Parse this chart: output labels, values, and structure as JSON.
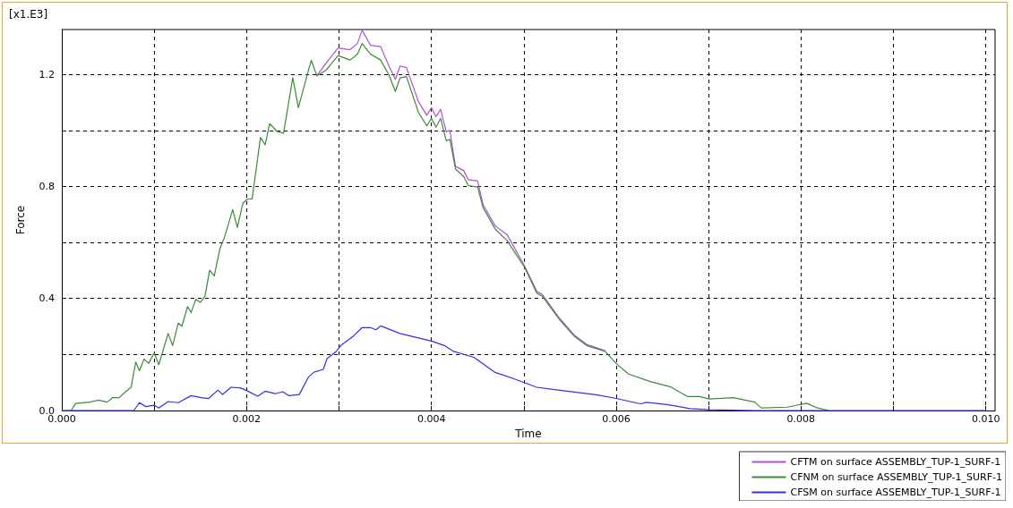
{
  "chart_data": {
    "type": "line",
    "xlabel": "Time",
    "ylabel": "Force",
    "annotations": [
      "[x1.E3]"
    ],
    "xlim": [
      0,
      0.0101
    ],
    "ylim": [
      0,
      1.36
    ],
    "xticks": [
      {
        "value": 0,
        "label": "0.000"
      },
      {
        "value": 0.001,
        "label": null
      },
      {
        "value": 0.002,
        "label": "0.002"
      },
      {
        "value": 0.003,
        "label": null
      },
      {
        "value": 0.004,
        "label": "0.004"
      },
      {
        "value": 0.005,
        "label": null
      },
      {
        "value": 0.006,
        "label": "0.006"
      },
      {
        "value": 0.007,
        "label": null
      },
      {
        "value": 0.008,
        "label": "0.008"
      },
      {
        "value": 0.009,
        "label": null
      },
      {
        "value": 0.01,
        "label": "0.010"
      }
    ],
    "yticks": [
      {
        "value": 0,
        "label": "0.0"
      },
      {
        "value": 0.2,
        "label": null
      },
      {
        "value": 0.4,
        "label": "0.4"
      },
      {
        "value": 0.6,
        "label": null
      },
      {
        "value": 0.8,
        "label": "0.8"
      },
      {
        "value": 1.0,
        "label": null
      },
      {
        "value": 1.2,
        "label": "1.2"
      }
    ],
    "grid": true,
    "legend": "bottom right",
    "marker": "none",
    "line_style": "solid",
    "series": [
      {
        "name": "CFTM on surface ASSEMBLY_TUP-1_SURF-1",
        "color": "#b050d8",
        "x": [
          0.00276,
          0.00286,
          0.00299,
          0.00312,
          0.0032,
          0.00325,
          0.00334,
          0.00345,
          0.00354,
          0.00361,
          0.00366,
          0.00373,
          0.00386,
          0.00395,
          0.004,
          0.00405,
          0.0041,
          0.00416,
          0.0042,
          0.00426,
          0.00435,
          0.0044,
          0.0045,
          0.00456,
          0.00469,
          0.00482,
          0.00501,
          0.00514,
          0.0052,
          0.00539,
          0.00555,
          0.00568,
          0.00588
        ],
        "values": [
          1.195,
          1.24,
          1.294,
          1.288,
          1.31,
          1.358,
          1.304,
          1.299,
          1.23,
          1.182,
          1.23,
          1.224,
          1.102,
          1.054,
          1.081,
          1.049,
          1.075,
          0.995,
          1.0,
          0.872,
          0.856,
          0.824,
          0.819,
          0.734,
          0.659,
          0.627,
          0.515,
          0.425,
          0.414,
          0.328,
          0.268,
          0.236,
          0.214
        ]
      },
      {
        "name": "CFNM on surface ASSEMBLY_TUP-1_SURF-1",
        "color": "#3a8a3a",
        "x": [
          0,
          0.0001,
          0.00015,
          0.0003,
          0.0004,
          0.00049,
          0.00055,
          0.00062,
          0.00068,
          0.00075,
          0.0008,
          0.00084,
          0.00089,
          0.00094,
          0.001,
          0.00105,
          0.00115,
          0.0012,
          0.00126,
          0.0013,
          0.00136,
          0.0014,
          0.00145,
          0.0015,
          0.00155,
          0.0016,
          0.00165,
          0.00171,
          0.00176,
          0.00185,
          0.0019,
          0.00196,
          0.00201,
          0.00206,
          0.00215,
          0.0022,
          0.00225,
          0.00233,
          0.0024,
          0.0025,
          0.00256,
          0.00267,
          0.0027,
          0.00276,
          0.00286,
          0.00299,
          0.00312,
          0.0032,
          0.00325,
          0.00334,
          0.00345,
          0.00354,
          0.00361,
          0.00366,
          0.00373,
          0.00386,
          0.00395,
          0.004,
          0.00405,
          0.0041,
          0.00416,
          0.0042,
          0.00426,
          0.00435,
          0.0044,
          0.0045,
          0.00456,
          0.00469,
          0.00482,
          0.00501,
          0.00514,
          0.0052,
          0.00539,
          0.00555,
          0.00568,
          0.00588,
          0.006,
          0.00613,
          0.00636,
          0.00659,
          0.00677,
          0.0069,
          0.00701,
          0.00727,
          0.0075,
          0.00757,
          0.00785,
          0.00797,
          0.00806,
          0.00816,
          0.0083
        ],
        "values": [
          0,
          0,
          0.025,
          0.03,
          0.037,
          0.03,
          0.046,
          0.046,
          0.064,
          0.083,
          0.173,
          0.142,
          0.184,
          0.168,
          0.206,
          0.163,
          0.275,
          0.232,
          0.312,
          0.301,
          0.371,
          0.35,
          0.397,
          0.386,
          0.408,
          0.501,
          0.48,
          0.576,
          0.618,
          0.717,
          0.653,
          0.74,
          0.755,
          0.755,
          0.975,
          0.948,
          1.024,
          0.996,
          0.99,
          1.188,
          1.081,
          1.215,
          1.25,
          1.195,
          1.215,
          1.267,
          1.251,
          1.272,
          1.31,
          1.272,
          1.251,
          1.198,
          1.139,
          1.187,
          1.192,
          1.064,
          1.016,
          1.043,
          1.011,
          1.043,
          0.963,
          0.968,
          0.862,
          0.835,
          0.803,
          0.798,
          0.723,
          0.648,
          0.606,
          0.51,
          0.419,
          0.408,
          0.323,
          0.264,
          0.232,
          0.211,
          0.168,
          0.131,
          0.104,
          0.084,
          0.05,
          0.05,
          0.041,
          0.046,
          0.03,
          0.009,
          0.012,
          0.02,
          0.026,
          0.011,
          0
        ]
      },
      {
        "name": "CFSM on surface ASSEMBLY_TUP-1_SURF-1",
        "color": "#3030e8",
        "x": [
          0,
          0.00078,
          0.00084,
          0.00091,
          0.001,
          0.00105,
          0.00115,
          0.00126,
          0.0014,
          0.00151,
          0.00159,
          0.00169,
          0.00174,
          0.00183,
          0.00193,
          0.00199,
          0.00212,
          0.0022,
          0.00231,
          0.00239,
          0.00246,
          0.00257,
          0.00267,
          0.00273,
          0.00283,
          0.00287,
          0.00297,
          0.00302,
          0.00315,
          0.00325,
          0.00334,
          0.0034,
          0.00345,
          0.00366,
          0.00386,
          0.004,
          0.00414,
          0.00424,
          0.00446,
          0.00469,
          0.00488,
          0.00501,
          0.00514,
          0.00539,
          0.00578,
          0.006,
          0.00626,
          0.00633,
          0.00655,
          0.0068,
          0.007,
          0.0075,
          0.01
        ],
        "values": [
          0,
          0,
          0.028,
          0.014,
          0.019,
          0.009,
          0.032,
          0.028,
          0.053,
          0.046,
          0.043,
          0.073,
          0.057,
          0.083,
          0.081,
          0.073,
          0.051,
          0.069,
          0.06,
          0.067,
          0.053,
          0.057,
          0.12,
          0.137,
          0.147,
          0.185,
          0.211,
          0.232,
          0.264,
          0.296,
          0.296,
          0.288,
          0.302,
          0.275,
          0.259,
          0.248,
          0.232,
          0.211,
          0.19,
          0.136,
          0.115,
          0.099,
          0.083,
          0.072,
          0.056,
          0.043,
          0.024,
          0.029,
          0.021,
          0.007,
          0.003,
          0,
          0
        ]
      }
    ]
  }
}
